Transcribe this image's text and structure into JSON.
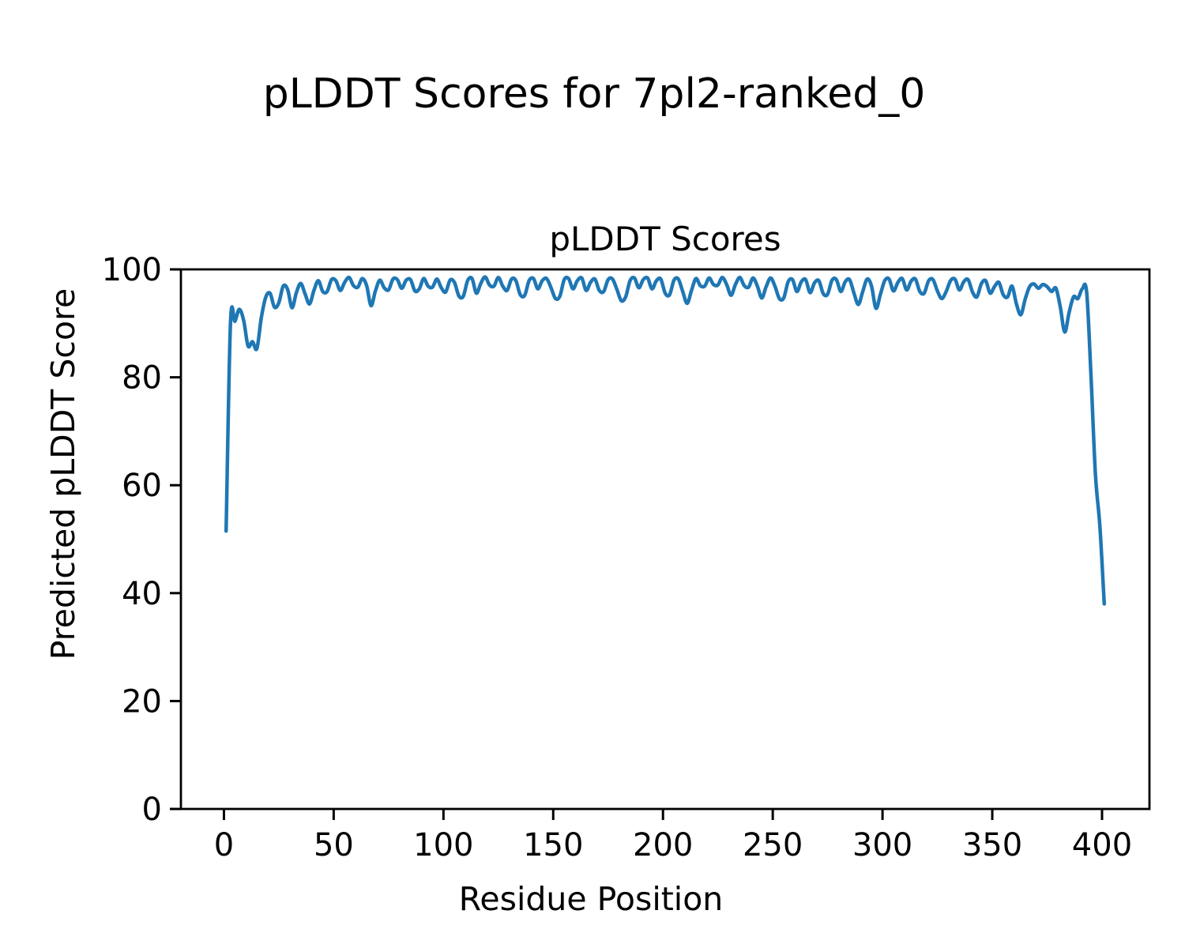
{
  "figure": {
    "title": "pLDDT Scores for 7pl2-ranked_0",
    "background": "#ffffff",
    "text_color": "#000000"
  },
  "chart_data": {
    "type": "line",
    "title": "pLDDT Scores",
    "xlabel": "Residue Position",
    "ylabel": "Predicted pLDDT Score",
    "xlim": [
      -19.6,
      421.6
    ],
    "ylim": [
      0,
      100
    ],
    "xticks": [
      0,
      50,
      100,
      150,
      200,
      250,
      300,
      350,
      400
    ],
    "yticks": [
      0,
      20,
      40,
      60,
      80,
      100
    ],
    "grid": false,
    "legend": null,
    "series": [
      {
        "name": "pLDDT",
        "color": "#1f77b4",
        "x_start": 1,
        "x_step": 2,
        "values": [
          51.5,
          90.2,
          90.4,
          92.6,
          90.5,
          85.8,
          86.6,
          85.3,
          91.0,
          94.8,
          95.6,
          93.0,
          93.8,
          96.9,
          96.3,
          92.9,
          95.7,
          97.4,
          95.4,
          93.6,
          96.1,
          97.9,
          95.9,
          95.9,
          98.1,
          97.9,
          96.1,
          97.6,
          98.5,
          97.0,
          96.7,
          98.3,
          97.0,
          93.3,
          96.0,
          98.0,
          96.6,
          96.2,
          98.2,
          98.1,
          96.5,
          98.0,
          98.1,
          96.0,
          96.4,
          98.3,
          96.9,
          96.7,
          98.2,
          96.6,
          95.8,
          98.0,
          97.6,
          95.1,
          95.0,
          97.9,
          98.3,
          95.6,
          97.4,
          98.6,
          97.1,
          96.9,
          98.5,
          96.9,
          96.1,
          98.2,
          97.9,
          95.3,
          95.2,
          97.9,
          98.3,
          96.4,
          97.9,
          98.3,
          96.6,
          94.6,
          95.0,
          98.1,
          98.3,
          96.4,
          97.9,
          98.4,
          96.1,
          97.6,
          98.2,
          96.1,
          95.9,
          98.1,
          98.2,
          96.3,
          94.2,
          94.9,
          97.9,
          98.4,
          96.6,
          98.1,
          98.4,
          96.4,
          97.9,
          98.2,
          95.6,
          95.3,
          98.0,
          98.2,
          95.9,
          93.7,
          96.1,
          98.3,
          97.0,
          96.9,
          98.4,
          97.2,
          97.1,
          98.5,
          97.2,
          95.2,
          97.2,
          98.5,
          97.0,
          96.7,
          98.4,
          96.9,
          94.7,
          96.8,
          98.4,
          96.9,
          94.6,
          94.7,
          97.7,
          98.1,
          95.9,
          97.7,
          98.1,
          95.7,
          97.5,
          97.9,
          95.5,
          95.4,
          98.0,
          98.1,
          95.9,
          97.7,
          98.1,
          95.6,
          93.5,
          95.9,
          98.2,
          96.9,
          92.8,
          95.3,
          97.9,
          98.2,
          96.0,
          97.6,
          98.3,
          96.2,
          97.8,
          98.2,
          95.9,
          95.6,
          97.9,
          98.1,
          96.0,
          94.6,
          95.9,
          97.9,
          98.2,
          96.2,
          97.7,
          98.1,
          95.8,
          94.9,
          97.3,
          97.9,
          95.6,
          96.8,
          97.6,
          95.3,
          94.9,
          96.9,
          93.6,
          91.6,
          94.5,
          96.8,
          97.3,
          96.5,
          97.2,
          96.8,
          95.9,
          96.5,
          93.0,
          88.4,
          92.0,
          94.9,
          94.6,
          96.4,
          95.8,
          80.0,
          62.0,
          52.5,
          38.0
        ]
      }
    ]
  }
}
